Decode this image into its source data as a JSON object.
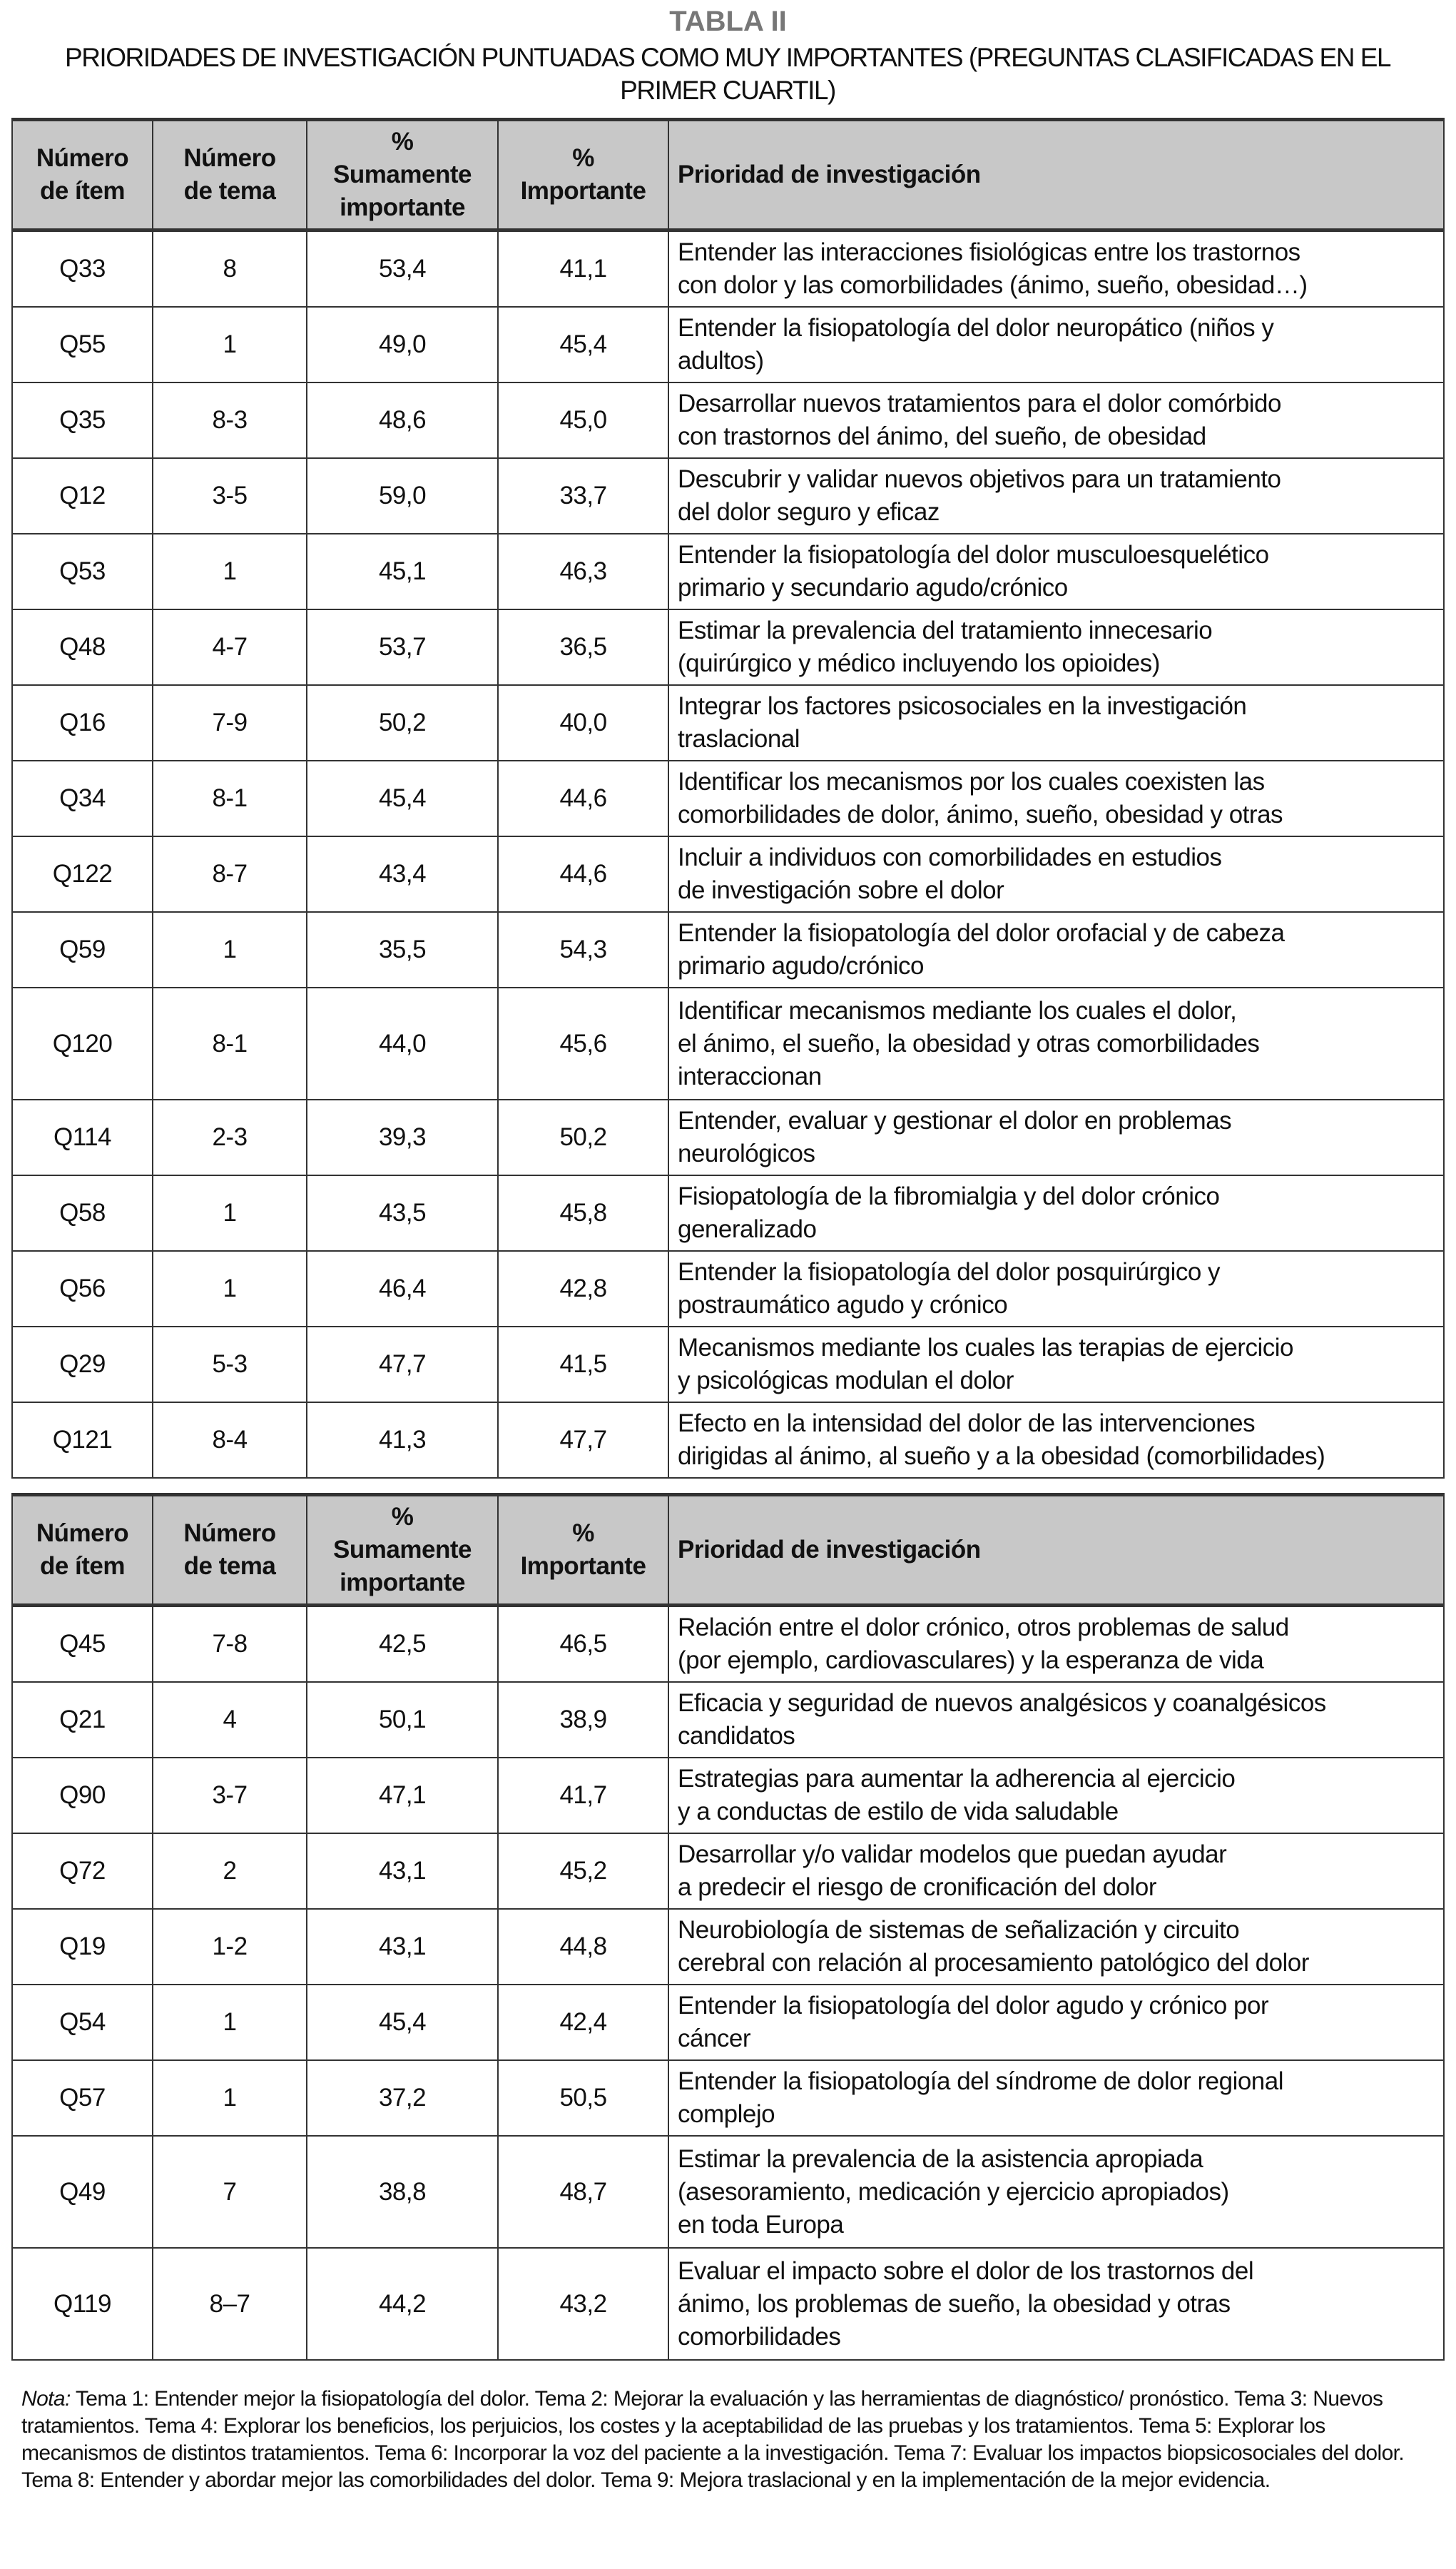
{
  "title": "TABLA II",
  "subtitle": "PRIORIDADES DE INVESTIGACIÓN PUNTUADAS COMO MUY IMPORTANTES (PREGUNTAS CLASIFICADAS EN EL PRIMER CUARTIL)",
  "headers": {
    "item": "Número\nde ítem",
    "tema": "Número\nde tema",
    "sumamente": "%\nSumamente\nimportante",
    "importante": "%\nImportante",
    "prioridad": "Prioridad de investigación"
  },
  "header_bg": "#c8c8c8",
  "table1": [
    {
      "item": "Q33",
      "tema": "8",
      "sum": "53,4",
      "imp": "41,1",
      "pri": "Entender las interacciones fisiológicas entre los trastornos\ncon dolor y las comorbilidades (ánimo, sueño, obesidad…)"
    },
    {
      "item": "Q55",
      "tema": "1",
      "sum": "49,0",
      "imp": "45,4",
      "pri": "Entender la fisiopatología del dolor neuropático (niños y\nadultos)"
    },
    {
      "item": "Q35",
      "tema": "8-3",
      "sum": "48,6",
      "imp": "45,0",
      "pri": "Desarrollar nuevos tratamientos para el dolor comórbido\ncon trastornos del ánimo, del sueño, de obesidad"
    },
    {
      "item": "Q12",
      "tema": "3-5",
      "sum": "59,0",
      "imp": "33,7",
      "pri": "Descubrir y validar nuevos objetivos para un tratamiento\ndel dolor seguro y eficaz"
    },
    {
      "item": "Q53",
      "tema": "1",
      "sum": "45,1",
      "imp": "46,3",
      "pri": "Entender la fisiopatología del dolor musculoesquelético\nprimario y secundario agudo/crónico"
    },
    {
      "item": "Q48",
      "tema": "4-7",
      "sum": "53,7",
      "imp": "36,5",
      "pri": "Estimar la prevalencia del tratamiento innecesario\n(quirúrgico y médico incluyendo los opioides)"
    },
    {
      "item": "Q16",
      "tema": "7-9",
      "sum": "50,2",
      "imp": "40,0",
      "pri": "Integrar los factores psicosociales en la investigación\ntraslacional"
    },
    {
      "item": "Q34",
      "tema": "8-1",
      "sum": "45,4",
      "imp": "44,6",
      "pri": "Identificar los mecanismos por los cuales coexisten las\ncomorbilidades de dolor, ánimo, sueño, obesidad y otras"
    },
    {
      "item": "Q122",
      "tema": "8-7",
      "sum": "43,4",
      "imp": "44,6",
      "pri": "Incluir a individuos con comorbilidades en estudios\nde investigación sobre el dolor"
    },
    {
      "item": "Q59",
      "tema": "1",
      "sum": "35,5",
      "imp": "54,3",
      "pri": "Entender la fisiopatología del dolor orofacial y de cabeza\nprimario agudo/crónico"
    },
    {
      "item": "Q120",
      "tema": "8-1",
      "sum": "44,0",
      "imp": "45,6",
      "pri": "Identificar mecanismos mediante los cuales el dolor,\nel ánimo, el sueño, la obesidad y otras comorbilidades\ninteraccionan"
    },
    {
      "item": "Q114",
      "tema": "2-3",
      "sum": "39,3",
      "imp": "50,2",
      "pri": "Entender, evaluar y gestionar el dolor en problemas\nneurológicos"
    },
    {
      "item": "Q58",
      "tema": "1",
      "sum": "43,5",
      "imp": "45,8",
      "pri": "Fisiopatología de la fibromialgia y del dolor crónico\ngeneralizado"
    },
    {
      "item": "Q56",
      "tema": "1",
      "sum": "46,4",
      "imp": "42,8",
      "pri": "Entender la fisiopatología del dolor posquirúrgico y\npostraumático agudo y crónico"
    },
    {
      "item": "Q29",
      "tema": "5-3",
      "sum": "47,7",
      "imp": "41,5",
      "pri": "Mecanismos mediante los cuales las terapias de ejercicio\ny psicológicas modulan el dolor"
    },
    {
      "item": "Q121",
      "tema": "8-4",
      "sum": "41,3",
      "imp": "47,7",
      "pri": "Efecto en la intensidad del dolor de las intervenciones\ndirigidas al ánimo, al sueño y a la obesidad (comorbilidades)"
    }
  ],
  "table2": [
    {
      "item": "Q45",
      "tema": "7-8",
      "sum": "42,5",
      "imp": "46,5",
      "pri": "Relación entre el dolor crónico, otros problemas de salud\n(por ejemplo, cardiovasculares) y la esperanza de vida"
    },
    {
      "item": "Q21",
      "tema": "4",
      "sum": "50,1",
      "imp": "38,9",
      "pri": "Eficacia y seguridad de nuevos analgésicos y coanalgésicos\ncandidatos"
    },
    {
      "item": "Q90",
      "tema": "3-7",
      "sum": "47,1",
      "imp": "41,7",
      "pri": "Estrategias para aumentar la adherencia al ejercicio\ny a conductas de estilo de vida saludable"
    },
    {
      "item": "Q72",
      "tema": "2",
      "sum": "43,1",
      "imp": "45,2",
      "pri": "Desarrollar y/o validar modelos que puedan ayudar\na predecir el riesgo de cronificación del dolor"
    },
    {
      "item": "Q19",
      "tema": "1-2",
      "sum": "43,1",
      "imp": "44,8",
      "pri": "Neurobiología de sistemas de señalización y circuito\ncerebral con relación al procesamiento patológico del dolor"
    },
    {
      "item": "Q54",
      "tema": "1",
      "sum": "45,4",
      "imp": "42,4",
      "pri": "Entender la fisiopatología del dolor agudo y crónico por\ncáncer"
    },
    {
      "item": "Q57",
      "tema": "1",
      "sum": "37,2",
      "imp": "50,5",
      "pri": "Entender la fisiopatología del síndrome de dolor regional\ncomplejo"
    },
    {
      "item": "Q49",
      "tema": "7",
      "sum": "38,8",
      "imp": "48,7",
      "pri": "Estimar la prevalencia de la asistencia apropiada\n(asesoramiento, medicación y ejercicio apropiados)\nen toda Europa"
    },
    {
      "item": "Q119",
      "tema": "8–7",
      "sum": "44,2",
      "imp": "43,2",
      "pri": "Evaluar el impacto sobre el dolor de los trastornos del\nánimo, los problemas de sueño, la obesidad y otras\ncomorbilidades"
    }
  ],
  "note": {
    "label": "Nota:",
    "text": " Tema 1: Entender mejor la fisiopatología del dolor. Tema 2: Mejorar la evaluación y las herramientas de diagnóstico/ pronóstico. Tema 3: Nuevos tratamientos. Tema 4: Explorar los beneficios, los perjuicios, los costes y la aceptabilidad de las pruebas y los tratamientos. Tema 5: Explorar los mecanismos de distintos tratamientos. Tema 6: Incorporar la voz del paciente a la investigación. Tema 7: Evaluar los impactos biopsicosociales del dolor. Tema 8: Entender y abordar mejor las comorbilidades del dolor. Tema 9: Mejora traslacional y en la implementación de la mejor evidencia."
  }
}
